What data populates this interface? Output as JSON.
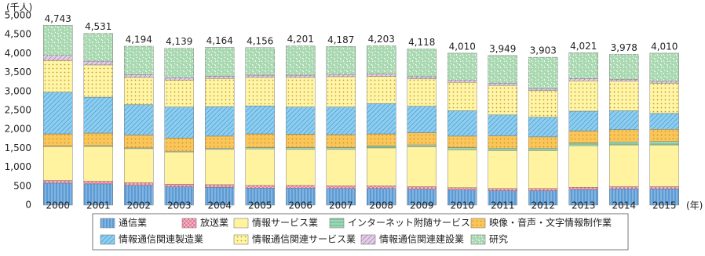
{
  "chart_data": {
    "type": "stacked-bar",
    "y_unit": "(千人)",
    "x_unit": "(年)",
    "categories": [
      "2000",
      "2001",
      "2002",
      "2003",
      "2004",
      "2005",
      "2006",
      "2007",
      "2008",
      "2009",
      "2010",
      "2011",
      "2012",
      "2013",
      "2014",
      "2015"
    ],
    "ylim": [
      0,
      5000
    ],
    "yticks": [
      0,
      {
        "value": 500,
        "label": "500"
      },
      {
        "value": 1000,
        "label": "1,000"
      },
      {
        "value": 1500,
        "label": "1,500"
      },
      {
        "value": 2000,
        "label": "2,000"
      },
      {
        "value": 2500,
        "label": "2,500"
      },
      {
        "value": 3000,
        "label": "3,000"
      },
      {
        "value": 3500,
        "label": "3,500"
      },
      {
        "value": 4000,
        "label": "4,000"
      },
      {
        "value": 4500,
        "label": "4,500"
      },
      {
        "value": 5000,
        "label": "5,000"
      }
    ],
    "totals": [
      4743,
      4531,
      4194,
      4139,
      4164,
      4156,
      4201,
      4187,
      4203,
      4118,
      4010,
      3949,
      3903,
      4021,
      3978,
      4010
    ],
    "totals_labels": [
      "4,743",
      "4,531",
      "4,194",
      "4,139",
      "4,164",
      "4,156",
      "4,201",
      "4,187",
      "4,203",
      "4,118",
      "4,010",
      "3,949",
      "3,903",
      "4,021",
      "3,978",
      "4,010"
    ],
    "series": [
      {
        "name": "通信業",
        "color": "#5b9bd5",
        "pattern": "vlines",
        "values": [
          580,
          560,
          520,
          480,
          470,
          450,
          450,
          440,
          440,
          420,
          400,
          380,
          380,
          410,
          430,
          430
        ]
      },
      {
        "name": "放送業",
        "color": "#f4b6c8",
        "pattern": "cross",
        "values": [
          70,
          70,
          70,
          70,
          70,
          70,
          70,
          70,
          70,
          70,
          60,
          60,
          60,
          60,
          60,
          60
        ]
      },
      {
        "name": "情報サービス業",
        "color": "#fff3a0",
        "pattern": "none",
        "values": [
          900,
          920,
          900,
          850,
          930,
          960,
          950,
          960,
          1000,
          1050,
          1000,
          1000,
          1000,
          1100,
          1100,
          1100
        ]
      },
      {
        "name": "インターネット附随サービス",
        "color": "#7fc8a0",
        "pattern": "hlines",
        "values": [
          10,
          20,
          20,
          20,
          30,
          40,
          50,
          50,
          50,
          50,
          60,
          60,
          60,
          70,
          80,
          90
        ]
      },
      {
        "name": "映像・音声・文字情報制作業",
        "color": "#fbc55a",
        "pattern": "dots",
        "values": [
          320,
          330,
          340,
          350,
          320,
          360,
          350,
          340,
          320,
          320,
          300,
          330,
          300,
          320,
          320,
          320
        ]
      },
      {
        "name": "情報通信関連製造業",
        "color": "#8ccdf0",
        "pattern": "hatch",
        "values": [
          1100,
          950,
          800,
          820,
          780,
          740,
          720,
          730,
          800,
          700,
          670,
          550,
          520,
          520,
          500,
          420
        ]
      },
      {
        "name": "情報通信関連サービス業",
        "color": "#fff5a8",
        "pattern": "dots",
        "values": [
          840,
          850,
          720,
          710,
          740,
          750,
          780,
          800,
          720,
          720,
          750,
          780,
          700,
          800,
          780,
          800
        ]
      },
      {
        "name": "情報通信関連建設業",
        "color": "#f0c8e0",
        "pattern": "hatch",
        "values": [
          130,
          100,
          70,
          60,
          60,
          60,
          60,
          60,
          60,
          60,
          60,
          60,
          50,
          60,
          50,
          50
        ]
      },
      {
        "name": "研究",
        "color": "#a8d8b0",
        "pattern": "dashes",
        "values": [
          793,
          731,
          754,
          779,
          764,
          726,
          771,
          737,
          743,
          728,
          710,
          729,
          833,
          681,
          658,
          740
        ]
      }
    ]
  }
}
